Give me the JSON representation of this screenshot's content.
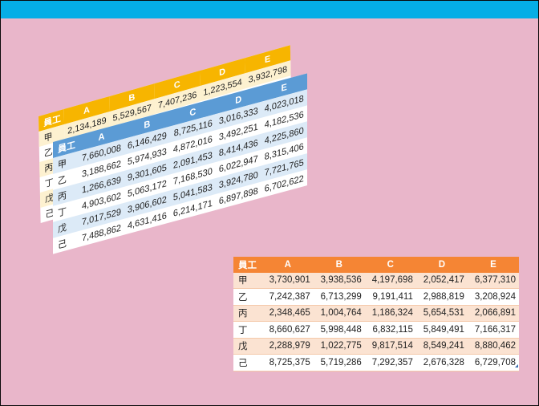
{
  "tables": {
    "yellow": {
      "header": [
        "員工",
        "A",
        "B",
        "C",
        "D",
        "E"
      ],
      "rows": [
        [
          "甲",
          "2,134,189",
          "5,529,567",
          "7,407,236",
          "1,223,554",
          "3,932,798"
        ],
        [
          "乙",
          "",
          "",
          "",
          "",
          ""
        ],
        [
          "丙",
          "",
          "",
          "",
          "",
          ""
        ],
        [
          "丁",
          "",
          "",
          "",
          "",
          ""
        ],
        [
          "戊",
          "",
          "",
          "",
          "",
          ""
        ],
        [
          "己",
          "",
          "",
          "",
          "",
          ""
        ]
      ]
    },
    "blue": {
      "header": [
        "員工",
        "A",
        "B",
        "C",
        "D",
        "E"
      ],
      "rows": [
        [
          "甲",
          "7,660,008",
          "6,146,429",
          "8,725,116",
          "3,016,333",
          "4,023,018"
        ],
        [
          "乙",
          "3,188,662",
          "5,974,933",
          "4,872,016",
          "3,492,251",
          "4,182,536"
        ],
        [
          "丙",
          "1,266,639",
          "9,301,605",
          "2,091,453",
          "8,414,436",
          "4,225,860"
        ],
        [
          "丁",
          "4,903,602",
          "5,063,172",
          "7,168,530",
          "6,022,947",
          "8,315,406"
        ],
        [
          "戊",
          "7,017,529",
          "3,906,602",
          "5,041,583",
          "3,924,780",
          "7,721,765"
        ],
        [
          "己",
          "7,488,862",
          "4,631,416",
          "6,214,171",
          "6,897,898",
          "6,702,622"
        ]
      ]
    },
    "orange": {
      "header": [
        "員工",
        "A",
        "B",
        "C",
        "D",
        "E"
      ],
      "rows": [
        [
          "甲",
          "3,730,901",
          "3,938,536",
          "4,197,698",
          "2,052,417",
          "6,377,310"
        ],
        [
          "乙",
          "7,242,387",
          "6,713,299",
          "9,191,411",
          "2,988,819",
          "3,208,924"
        ],
        [
          "丙",
          "2,348,465",
          "1,004,764",
          "1,186,324",
          "5,654,531",
          "2,066,891"
        ],
        [
          "丁",
          "8,660,627",
          "5,998,448",
          "6,832,115",
          "5,849,491",
          "7,166,317"
        ],
        [
          "戊",
          "2,288,979",
          "1,022,775",
          "9,817,514",
          "8,549,241",
          "8,880,462"
        ],
        [
          "己",
          "8,725,375",
          "5,719,286",
          "7,292,357",
          "2,676,328",
          "6,729,708"
        ]
      ]
    }
  },
  "colors": {
    "background": "#e9b6ca",
    "topbar": "#05aee6",
    "yellow_header": "#f7b500",
    "blue_header": "#5b9bd5",
    "orange_header": "#f58534"
  }
}
